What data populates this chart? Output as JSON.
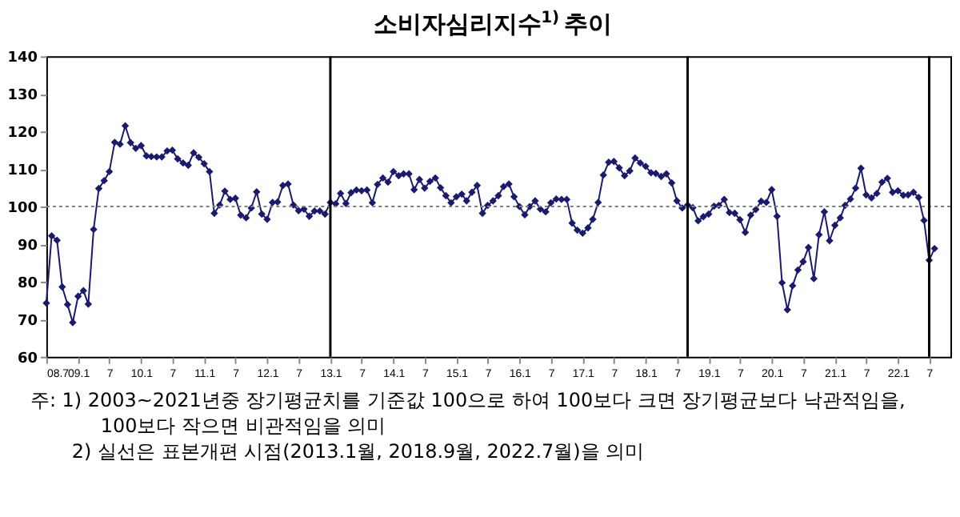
{
  "chart_data": {
    "type": "line",
    "title": "소비자심리지수$^{1)}$ 추이",
    "x": [
      "2008-07",
      "2008-08",
      "2008-09",
      "2008-10",
      "2008-11",
      "2008-12",
      "2009-01",
      "2009-02",
      "2009-03",
      "2009-04",
      "2009-05",
      "2009-06",
      "2009-07",
      "2009-08",
      "2009-09",
      "2009-10",
      "2009-11",
      "2009-12",
      "2010-01",
      "2010-02",
      "2010-03",
      "2010-04",
      "2010-05",
      "2010-06",
      "2010-07",
      "2010-08",
      "2010-09",
      "2010-10",
      "2010-11",
      "2010-12",
      "2011-01",
      "2011-02",
      "2011-03",
      "2011-04",
      "2011-05",
      "2011-06",
      "2011-07",
      "2011-08",
      "2011-09",
      "2011-10",
      "2011-11",
      "2011-12",
      "2012-01",
      "2012-02",
      "2012-03",
      "2012-04",
      "2012-05",
      "2012-06",
      "2012-07",
      "2012-08",
      "2012-09",
      "2012-10",
      "2012-11",
      "2012-12",
      "2013-01",
      "2013-02",
      "2013-03",
      "2013-04",
      "2013-05",
      "2013-06",
      "2013-07",
      "2013-08",
      "2013-09",
      "2013-10",
      "2013-11",
      "2013-12",
      "2014-01",
      "2014-02",
      "2014-03",
      "2014-04",
      "2014-05",
      "2014-06",
      "2014-07",
      "2014-08",
      "2014-09",
      "2014-10",
      "2014-11",
      "2014-12",
      "2015-01",
      "2015-02",
      "2015-03",
      "2015-04",
      "2015-05",
      "2015-06",
      "2015-07",
      "2015-08",
      "2015-09",
      "2015-10",
      "2015-11",
      "2015-12",
      "2016-01",
      "2016-02",
      "2016-03",
      "2016-04",
      "2016-05",
      "2016-06",
      "2016-07",
      "2016-08",
      "2016-09",
      "2016-10",
      "2016-11",
      "2016-12",
      "2017-01",
      "2017-02",
      "2017-03",
      "2017-04",
      "2017-05",
      "2017-06",
      "2017-07",
      "2017-08",
      "2017-09",
      "2017-10",
      "2017-11",
      "2017-12",
      "2018-01",
      "2018-02",
      "2018-03",
      "2018-04",
      "2018-05",
      "2018-06",
      "2018-07",
      "2018-08",
      "2018-09",
      "2018-10",
      "2018-11",
      "2018-12",
      "2019-01",
      "2019-02",
      "2019-03",
      "2019-04",
      "2019-05",
      "2019-06",
      "2019-07",
      "2019-08",
      "2019-09",
      "2019-10",
      "2019-11",
      "2019-12",
      "2020-01",
      "2020-02",
      "2020-03",
      "2020-04",
      "2020-05",
      "2020-06",
      "2020-07",
      "2020-08",
      "2020-09",
      "2020-10",
      "2020-11",
      "2020-12",
      "2021-01",
      "2021-02",
      "2021-03",
      "2021-04",
      "2021-05",
      "2021-06",
      "2021-07",
      "2021-08",
      "2021-09",
      "2021-10",
      "2021-11",
      "2021-12",
      "2022-01",
      "2022-02",
      "2022-03",
      "2022-04",
      "2022-05",
      "2022-06",
      "2022-07",
      "2022-08"
    ],
    "series": [
      {
        "color": "#1a1a6e",
        "values": [
          74.3,
          92.2,
          91.0,
          78.6,
          73.9,
          69.1,
          76.1,
          77.6,
          74.0,
          93.9,
          104.8,
          106.9,
          109.3,
          117.1,
          116.6,
          121.5,
          117.0,
          115.5,
          116.2,
          113.5,
          113.3,
          113.2,
          113.2,
          114.8,
          115.0,
          112.7,
          111.6,
          111.0,
          114.3,
          113.1,
          111.4,
          109.3,
          98.2,
          100.4,
          104.1,
          101.9,
          102.2,
          97.7,
          97.0,
          99.6,
          103.9,
          98.0,
          96.6,
          101.1,
          101.2,
          105.6,
          106.0,
          100.4,
          98.9,
          99.3,
          97.4,
          98.8,
          98.8,
          98.0,
          101.1,
          100.7,
          103.5,
          100.8,
          103.7,
          104.4,
          104.2,
          104.4,
          101.0,
          105.9,
          107.6,
          106.5,
          109.3,
          108.2,
          108.7,
          108.7,
          104.5,
          107.2,
          104.9,
          106.7,
          107.6,
          105.0,
          102.9,
          101.0,
          102.6,
          103.3,
          101.5,
          103.8,
          105.6,
          98.2,
          100.3,
          101.5,
          102.9,
          105.3,
          106.0,
          102.6,
          100.0,
          97.8,
          100.0,
          101.5,
          99.3,
          98.6,
          101.0,
          102.0,
          101.9,
          101.9,
          95.6,
          93.7,
          92.9,
          94.3,
          96.6,
          101.1,
          108.4,
          111.8,
          112.0,
          110.3,
          108.2,
          109.5,
          112.9,
          111.6,
          110.7,
          109.0,
          108.8,
          108.0,
          108.7,
          106.3,
          101.5,
          99.6,
          100.4,
          99.7,
          96.2,
          97.3,
          98.0,
          100.1,
          100.3,
          101.9,
          98.4,
          98.2,
          96.5,
          93.1,
          97.7,
          99.2,
          101.4,
          101.1,
          104.5,
          97.4,
          79.7,
          72.5,
          78.9,
          83.1,
          85.3,
          89.1,
          80.8,
          92.5,
          98.6,
          90.9,
          95.0,
          97.0,
          100.3,
          102.0,
          104.9,
          110.2,
          103.1,
          102.3,
          103.5,
          106.5,
          107.5,
          103.8,
          104.2,
          103.0,
          103.1,
          103.8,
          102.4,
          96.3,
          85.7,
          88.8
        ]
      }
    ],
    "xlim": [
      "2008-07",
      "2022-11"
    ],
    "xticks": [
      {
        "value": "2008-07",
        "label": "08.7"
      },
      {
        "value": "2009-01",
        "label": "09.1"
      },
      {
        "value": "2009-07",
        "label": "7"
      },
      {
        "value": "2010-01",
        "label": "10.1"
      },
      {
        "value": "2010-07",
        "label": "7"
      },
      {
        "value": "2011-01",
        "label": "11.1"
      },
      {
        "value": "2011-07",
        "label": "7"
      },
      {
        "value": "2012-01",
        "label": "12.1"
      },
      {
        "value": "2012-07",
        "label": "7"
      },
      {
        "value": "2013-01",
        "label": "13.1"
      },
      {
        "value": "2013-07",
        "label": "7"
      },
      {
        "value": "2014-01",
        "label": "14.1"
      },
      {
        "value": "2014-07",
        "label": "7"
      },
      {
        "value": "2015-01",
        "label": "15.1"
      },
      {
        "value": "2015-07",
        "label": "7"
      },
      {
        "value": "2016-01",
        "label": "16.1"
      },
      {
        "value": "2016-07",
        "label": "7"
      },
      {
        "value": "2017-01",
        "label": "17.1"
      },
      {
        "value": "2017-07",
        "label": "7"
      },
      {
        "value": "2018-01",
        "label": "18.1"
      },
      {
        "value": "2018-07",
        "label": "7"
      },
      {
        "value": "2019-01",
        "label": "19.1"
      },
      {
        "value": "2019-07",
        "label": "7"
      },
      {
        "value": "2020-01",
        "label": "20.1"
      },
      {
        "value": "2020-07",
        "label": "7"
      },
      {
        "value": "2021-01",
        "label": "21.1"
      },
      {
        "value": "2021-07",
        "label": "7"
      },
      {
        "value": "2022-01",
        "label": "22.1"
      },
      {
        "value": "2022-07",
        "label": "7"
      }
    ],
    "ylim": [
      60,
      140
    ],
    "yticks": [
      60,
      70,
      80,
      90,
      100,
      110,
      120,
      130,
      140
    ],
    "ref_lines": [
      {
        "axis": "y",
        "value": 100,
        "color": "#808080",
        "line_style": "dotted"
      },
      {
        "axis": "x",
        "value": "2013-01",
        "color": "#000000",
        "line_style": "solid"
      },
      {
        "axis": "x",
        "value": "2018-09",
        "color": "#000000",
        "line_style": "solid"
      },
      {
        "axis": "x",
        "value": "2022-07",
        "color": "#000000",
        "line_style": "solid"
      }
    ],
    "marker": "diamond",
    "line_style": "solid",
    "grid": false,
    "annotations": [
      "주: 1) 2003~2021년중 장기평균치를 기준값 100으로 하여 100보다 크면 장기평균보다 낙관적임을, 100보다 작으면 비관적임을 의미",
      "2) 실선은 표본개편 시점(2013.1월, 2018.9월, 2022.7월)을 의미"
    ]
  }
}
